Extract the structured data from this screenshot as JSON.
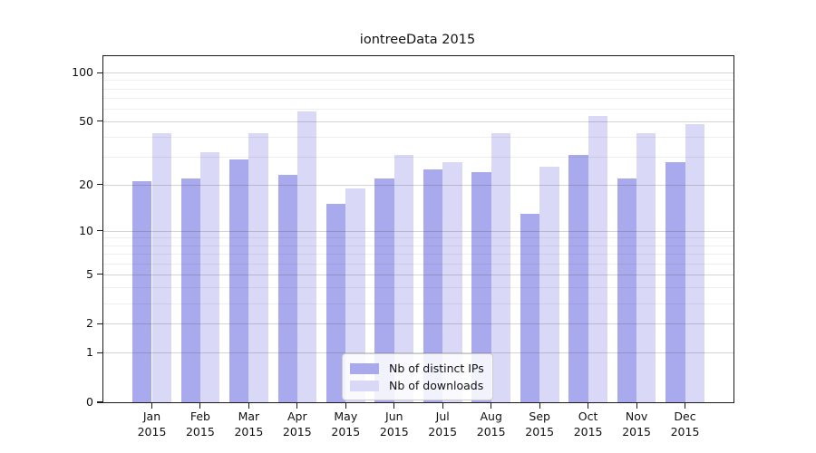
{
  "chart_data": {
    "type": "bar",
    "title": "iontreeData 2015",
    "categories": [
      "Jan 2015",
      "Feb 2015",
      "Mar 2015",
      "Apr 2015",
      "May 2015",
      "Jun 2015",
      "Jul 2015",
      "Aug 2015",
      "Sep 2015",
      "Oct 2015",
      "Nov 2015",
      "Dec 2015"
    ],
    "series": [
      {
        "name": "Nb of distinct IPs",
        "color": "#a9a9ee",
        "values": [
          21,
          22,
          29,
          23,
          15,
          22,
          25,
          24,
          13,
          31,
          22,
          28
        ]
      },
      {
        "name": "Nb of downloads",
        "color": "#d9d9f7",
        "values": [
          42,
          32,
          42,
          58,
          19,
          31,
          28,
          42,
          26,
          54,
          42,
          48
        ]
      }
    ],
    "xlabel": "",
    "ylabel": "",
    "yscale": "log1p",
    "ylim": [
      0,
      126
    ],
    "y_ticks": [
      0,
      1,
      2,
      5,
      10,
      20,
      50,
      100
    ],
    "y_minor_gridlines": [
      3,
      4,
      6,
      7,
      8,
      9,
      30,
      40,
      60,
      70,
      80,
      90
    ],
    "grid": true,
    "legend_position": "lower center",
    "bar_group_width_fraction": 0.8
  }
}
